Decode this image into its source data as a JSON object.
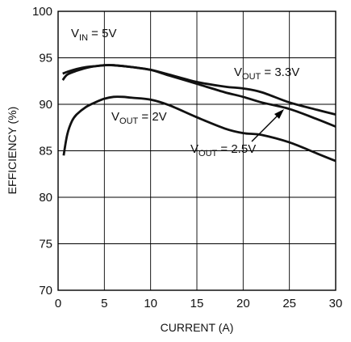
{
  "chart_data": {
    "type": "line",
    "xlabel": "CURRENT (A)",
    "ylabel": "EFFICIENCY (%)",
    "xlim": [
      0,
      30
    ],
    "ylim": [
      70,
      100
    ],
    "xticks": [
      0,
      5,
      10,
      15,
      20,
      25,
      30
    ],
    "yticks": [
      70,
      75,
      80,
      85,
      90,
      95,
      100
    ],
    "grid": true,
    "annotations": {
      "vin": {
        "main": "V",
        "sub": "IN",
        "rest": " = 5V"
      },
      "vout33": {
        "main": "V",
        "sub": "OUT",
        "rest": " = 3.3V"
      },
      "vout2": {
        "main": "V",
        "sub": "OUT",
        "rest": " = 2V"
      },
      "vout25": {
        "main": "V",
        "sub": "OUT",
        "rest": " = 2.5V"
      }
    },
    "series": [
      {
        "x": [
          0.5,
          1,
          2,
          3,
          4,
          5,
          6,
          8,
          10,
          12,
          15,
          18,
          20,
          22,
          25,
          28,
          30
        ],
        "values": [
          92.6,
          93.2,
          93.6,
          93.9,
          94.1,
          94.2,
          94.2,
          94.0,
          93.7,
          93.2,
          92.4,
          91.9,
          91.7,
          91.3,
          90.2,
          89.4,
          88.9
        ]
      },
      {
        "x": [
          0.5,
          1,
          2,
          3,
          4,
          5,
          6,
          8,
          10,
          12,
          15,
          18,
          20,
          22,
          25,
          28,
          30
        ],
        "values": [
          93.3,
          93.5,
          93.8,
          94.0,
          94.1,
          94.2,
          94.2,
          94.0,
          93.7,
          93.1,
          92.2,
          91.3,
          90.8,
          90.2,
          89.5,
          88.4,
          87.6
        ]
      },
      {
        "x": [
          0.6,
          1,
          1.5,
          2,
          3,
          4,
          5,
          6,
          7,
          8,
          10,
          12,
          15,
          18,
          20,
          22,
          25,
          28,
          30
        ],
        "values": [
          84.5,
          86.8,
          88.2,
          88.9,
          89.7,
          90.2,
          90.6,
          90.8,
          90.8,
          90.7,
          90.5,
          89.9,
          88.6,
          87.4,
          86.9,
          86.7,
          85.9,
          84.7,
          83.9
        ]
      }
    ]
  }
}
